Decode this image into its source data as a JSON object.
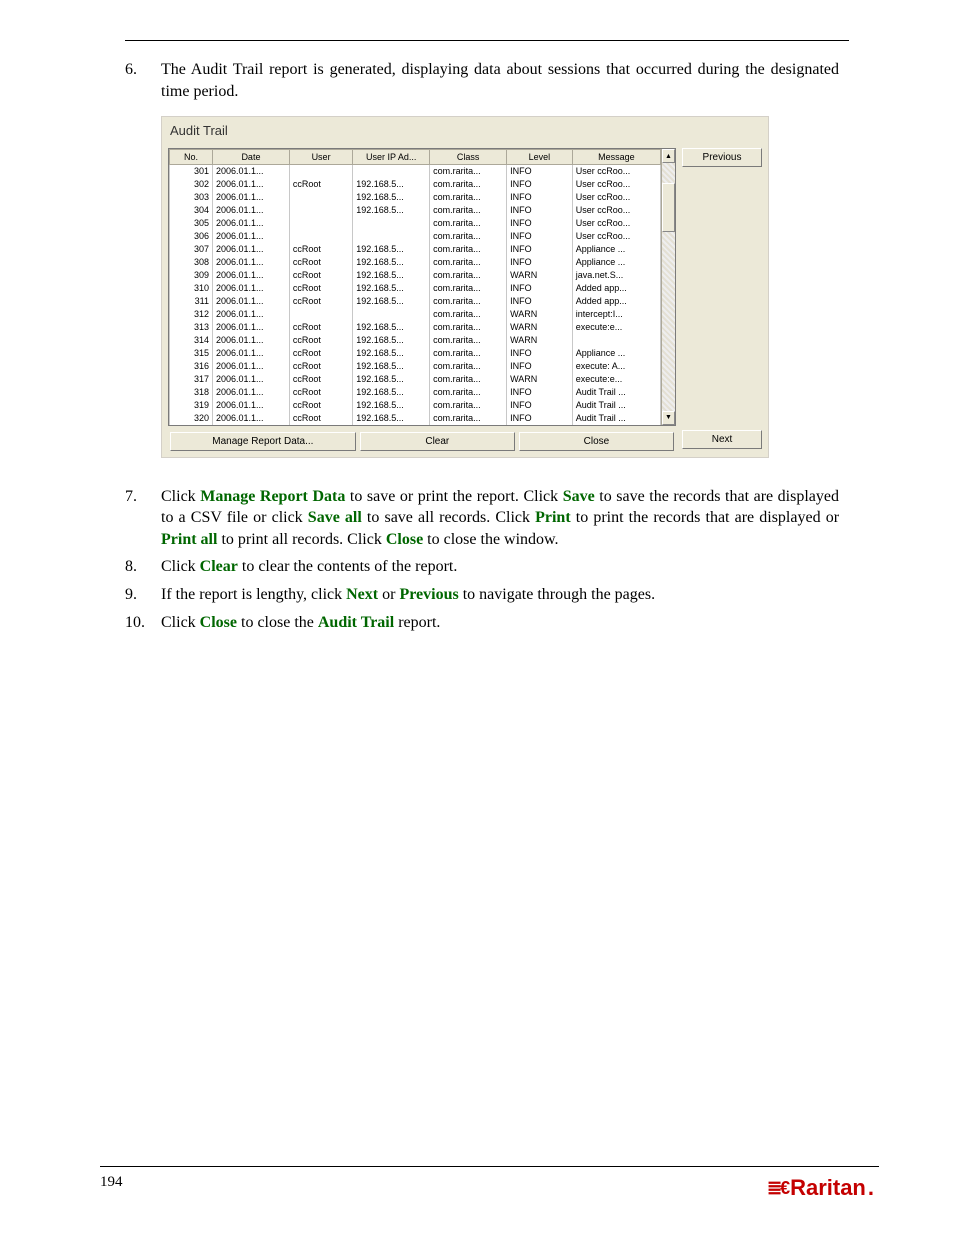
{
  "page_number": "194",
  "brand": {
    "mark": "≣€",
    "name": "Raritan",
    "dot": "."
  },
  "instructions": {
    "i6": "The Audit Trail report is generated, displaying data about sessions that occurred during the designated time period.",
    "i7_a": "Click ",
    "i7_b": " to save or print the report. Click ",
    "i7_c": " to save the records that are displayed to a CSV file or click ",
    "i7_d": " to save all records. Click ",
    "i7_e": " to print the records that are displayed or ",
    "i7_f": " to print all records. Click ",
    "i7_g": " to close the window.",
    "i8_a": "Click ",
    "i8_b": " to clear the contents of the report.",
    "i9_a": "If the report is lengthy, click ",
    "i9_b": " or ",
    "i9_c": " to navigate through the pages.",
    "i10_a": "Click ",
    "i10_b": " to close the ",
    "i10_c": " report.",
    "g_manage": "Manage Report Data",
    "g_save": "Save",
    "g_saveall": "Save all",
    "g_print": "Print",
    "g_printall": "Print all",
    "g_close": "Close",
    "g_clear": "Clear",
    "g_next": "Next",
    "g_previous": "Previous",
    "g_audit": "Audit Trail"
  },
  "figure": {
    "title": "Audit Trail",
    "buttons": {
      "previous": "Previous",
      "next": "Next",
      "manage": "Manage Report Data...",
      "clear": "Clear",
      "close": "Close"
    },
    "columns": [
      "No.",
      "Date",
      "User",
      "User IP Ad...",
      "Class",
      "Level",
      "Message"
    ],
    "rows": [
      [
        "301",
        "2006.01.1...",
        "",
        "",
        "com.rarita...",
        "INFO",
        "User ccRoo..."
      ],
      [
        "302",
        "2006.01.1...",
        "ccRoot",
        "192.168.5...",
        "com.rarita...",
        "INFO",
        "User ccRoo..."
      ],
      [
        "303",
        "2006.01.1...",
        "",
        "192.168.5...",
        "com.rarita...",
        "INFO",
        "User ccRoo..."
      ],
      [
        "304",
        "2006.01.1...",
        "",
        "192.168.5...",
        "com.rarita...",
        "INFO",
        "User ccRoo..."
      ],
      [
        "305",
        "2006.01.1...",
        "",
        "",
        "com.rarita...",
        "INFO",
        "User ccRoo..."
      ],
      [
        "306",
        "2006.01.1...",
        "",
        "",
        "com.rarita...",
        "INFO",
        "User ccRoo..."
      ],
      [
        "307",
        "2006.01.1...",
        "ccRoot",
        "192.168.5...",
        "com.rarita...",
        "INFO",
        "Appliance ..."
      ],
      [
        "308",
        "2006.01.1...",
        "ccRoot",
        "192.168.5...",
        "com.rarita...",
        "INFO",
        "Appliance ..."
      ],
      [
        "309",
        "2006.01.1...",
        "ccRoot",
        "192.168.5...",
        "com.rarita...",
        "WARN",
        "java.net.S..."
      ],
      [
        "310",
        "2006.01.1...",
        "ccRoot",
        "192.168.5...",
        "com.rarita...",
        "INFO",
        "Added app..."
      ],
      [
        "311",
        "2006.01.1...",
        "ccRoot",
        "192.168.5...",
        "com.rarita...",
        "INFO",
        "Added app..."
      ],
      [
        "312",
        "2006.01.1...",
        "",
        "",
        "com.rarita...",
        "WARN",
        "intercept:I..."
      ],
      [
        "313",
        "2006.01.1...",
        "ccRoot",
        "192.168.5...",
        "com.rarita...",
        "WARN",
        "execute:e..."
      ],
      [
        "314",
        "2006.01.1...",
        "ccRoot",
        "192.168.5...",
        "com.rarita...",
        "WARN",
        ""
      ],
      [
        "315",
        "2006.01.1...",
        "ccRoot",
        "192.168.5...",
        "com.rarita...",
        "INFO",
        "Appliance ..."
      ],
      [
        "316",
        "2006.01.1...",
        "ccRoot",
        "192.168.5...",
        "com.rarita...",
        "INFO",
        "execute: A..."
      ],
      [
        "317",
        "2006.01.1...",
        "ccRoot",
        "192.168.5...",
        "com.rarita...",
        "WARN",
        "execute:e..."
      ],
      [
        "318",
        "2006.01.1...",
        "ccRoot",
        "192.168.5...",
        "com.rarita...",
        "INFO",
        "Audit Trail ..."
      ],
      [
        "319",
        "2006.01.1...",
        "ccRoot",
        "192.168.5...",
        "com.rarita...",
        "INFO",
        "Audit Trail ..."
      ],
      [
        "320",
        "2006.01.1...",
        "ccRoot",
        "192.168.5...",
        "com.rarita...",
        "INFO",
        "Audit Trail ..."
      ]
    ]
  },
  "colors": {
    "panel_bg": "#ece9d8",
    "border": "#aca899",
    "green": "#006600",
    "brand": "#c40000"
  }
}
